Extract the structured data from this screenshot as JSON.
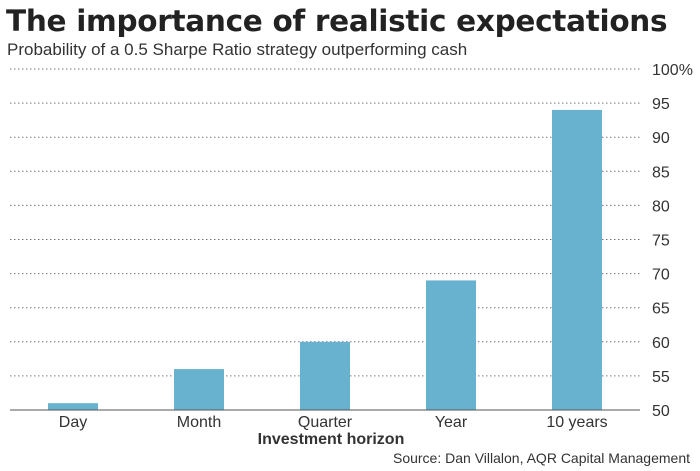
{
  "header": {
    "title": "The importance of realistic expectations",
    "subtitle": "Probability of a 0.5 Sharpe Ratio strategy outperforming cash"
  },
  "footer": {
    "source": "Source: Dan Villalon, AQR Capital Management"
  },
  "chart_data": {
    "type": "bar",
    "categories": [
      "Day",
      "Month",
      "Quarter",
      "Year",
      "10 years"
    ],
    "values": [
      51,
      56,
      60,
      69,
      94
    ],
    "xlabel": "Investment horizon",
    "ylabel": "",
    "ylim": [
      50,
      100
    ],
    "yticks": [
      50,
      55,
      60,
      65,
      70,
      75,
      80,
      85,
      90,
      95,
      100
    ],
    "ytick_labels": [
      "50",
      "55",
      "60",
      "65",
      "70",
      "75",
      "80",
      "85",
      "90",
      "95",
      "100%"
    ],
    "y_axis_side": "right",
    "grid": true,
    "grid_style": "dotted",
    "bar_color": "#68b2d0"
  }
}
